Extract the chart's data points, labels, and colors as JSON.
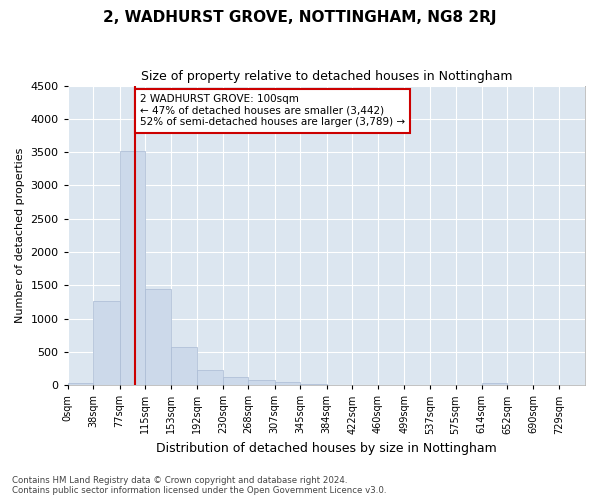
{
  "title": "2, WADHURST GROVE, NOTTINGHAM, NG8 2RJ",
  "subtitle": "Size of property relative to detached houses in Nottingham",
  "xlabel": "Distribution of detached houses by size in Nottingham",
  "ylabel": "Number of detached properties",
  "bar_color": "#ccd9ea",
  "bar_edge_color": "#aabbd4",
  "background_color": "#dce6f0",
  "grid_color": "#ffffff",
  "vline_x": 100,
  "vline_color": "#cc0000",
  "annotation_text": "2 WADHURST GROVE: 100sqm\n← 47% of detached houses are smaller (3,442)\n52% of semi-detached houses are larger (3,789) →",
  "annotation_box_color": "#ffffff",
  "annotation_box_edge": "#cc0000",
  "footer_line1": "Contains HM Land Registry data © Crown copyright and database right 2024.",
  "footer_line2": "Contains public sector information licensed under the Open Government Licence v3.0.",
  "bin_edges": [
    0,
    38,
    77,
    115,
    153,
    192,
    230,
    268,
    307,
    345,
    384,
    422,
    460,
    499,
    537,
    575,
    614,
    652,
    690,
    729,
    767
  ],
  "bar_heights": [
    30,
    1270,
    3510,
    1450,
    570,
    230,
    115,
    70,
    45,
    20,
    8,
    4,
    1,
    0,
    0,
    0,
    30,
    0,
    0,
    0
  ],
  "ylim": [
    0,
    4500
  ],
  "yticks": [
    0,
    500,
    1000,
    1500,
    2000,
    2500,
    3000,
    3500,
    4000,
    4500
  ]
}
